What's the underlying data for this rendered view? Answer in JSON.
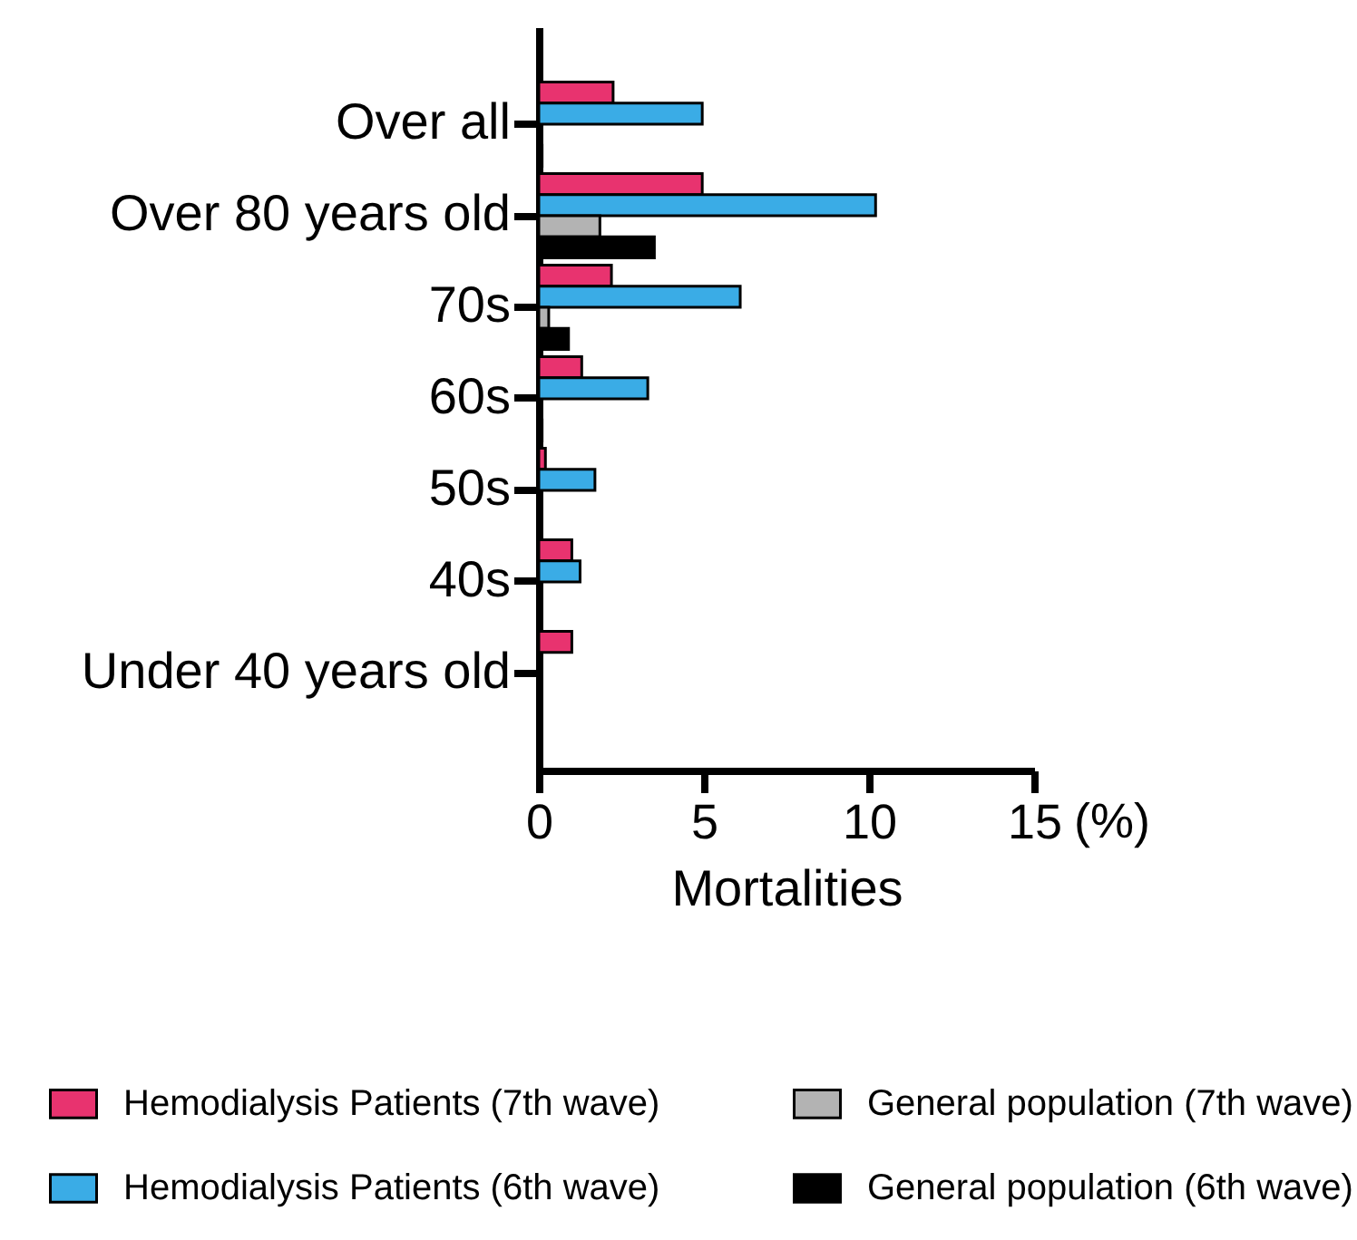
{
  "chart_data": {
    "type": "bar",
    "orientation": "horizontal",
    "xlabel": "Mortalities",
    "categories": [
      "Over all",
      "Over 80 years old",
      "70s",
      "60s",
      "50s",
      "40s",
      "Under 40 years old"
    ],
    "series": [
      {
        "name": "Hemodialysis Patients (7th wave)",
        "color": "#e8336f",
        "values": [
          2.25,
          4.95,
          2.2,
          1.3,
          0.2,
          1.0,
          1.0
        ]
      },
      {
        "name": "Hemodialysis Patients (6th wave)",
        "color": "#3aace6",
        "values": [
          4.95,
          10.2,
          6.1,
          3.3,
          1.7,
          1.25,
          0
        ]
      },
      {
        "name": "General population (7th wave)",
        "color": "#b3b3b3",
        "values": [
          0,
          1.85,
          0.3,
          0,
          0,
          0,
          0
        ]
      },
      {
        "name": "General population (6th wave)",
        "color": "#000000",
        "values": [
          0.1,
          3.5,
          0.9,
          0.1,
          0,
          0,
          0
        ]
      }
    ],
    "xlim": [
      0,
      15
    ],
    "xticks": [
      0,
      5,
      10,
      15
    ],
    "grid": false,
    "legend": "bottom",
    "annotations": [
      "(%)"
    ]
  }
}
